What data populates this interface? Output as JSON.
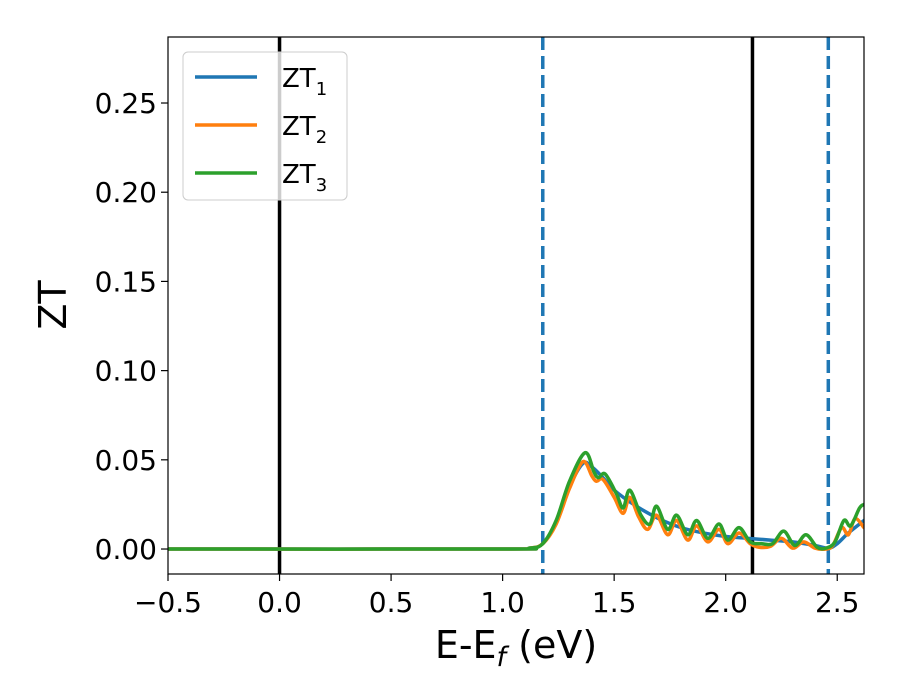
{
  "chart_data": {
    "type": "line",
    "title": "",
    "xlabel": "E-E",
    "xlabel_sub": "f",
    "xlabel_unit": " (eV)",
    "ylabel": "ZT",
    "xlim": [
      -0.5,
      2.62
    ],
    "ylim": [
      -0.014,
      0.287
    ],
    "xticks": [
      -0.5,
      0.0,
      0.5,
      1.0,
      1.5,
      2.0,
      2.5
    ],
    "xtick_labels": [
      "−0.5",
      "0.0",
      "0.5",
      "1.0",
      "1.5",
      "2.0",
      "2.5"
    ],
    "yticks": [
      0.0,
      0.05,
      0.1,
      0.15,
      0.2,
      0.25
    ],
    "ytick_labels": [
      "0.00",
      "0.05",
      "0.10",
      "0.15",
      "0.20",
      "0.25"
    ],
    "grid": false,
    "legend_position": "top-left",
    "vlines": [
      {
        "x": 0.0,
        "style": "solid",
        "color": "#000000"
      },
      {
        "x": 2.12,
        "style": "solid",
        "color": "#000000"
      },
      {
        "x": 1.18,
        "style": "dashed",
        "color": "#1f77b4"
      },
      {
        "x": 2.46,
        "style": "dashed",
        "color": "#1f77b4"
      }
    ],
    "series": [
      {
        "name": "ZT",
        "name_sub": "1",
        "color": "#1f77b4",
        "x": [
          -0.5,
          1.0,
          1.12,
          1.18,
          1.24,
          1.3,
          1.36,
          1.4,
          1.45,
          1.5,
          1.6,
          1.7,
          1.8,
          1.9,
          2.0,
          2.1,
          2.2,
          2.3,
          2.4,
          2.46,
          2.5,
          2.55,
          2.62
        ],
        "y": [
          0.0,
          0.0,
          0.0005,
          0.003,
          0.015,
          0.035,
          0.048,
          0.046,
          0.04,
          0.033,
          0.024,
          0.017,
          0.012,
          0.009,
          0.007,
          0.006,
          0.005,
          0.004,
          0.002,
          0.0005,
          0.003,
          0.009,
          0.016
        ]
      },
      {
        "name": "ZT",
        "name_sub": "2",
        "color": "#ff7f0e",
        "x": [
          -0.5,
          1.0,
          1.12,
          1.18,
          1.24,
          1.3,
          1.36,
          1.4,
          1.42,
          1.45,
          1.5,
          1.54,
          1.57,
          1.61,
          1.65,
          1.69,
          1.74,
          1.78,
          1.83,
          1.87,
          1.92,
          1.97,
          2.01,
          2.06,
          2.11,
          2.15,
          2.2,
          2.25,
          2.3,
          2.35,
          2.4,
          2.45,
          2.48,
          2.52,
          2.55,
          2.58,
          2.62
        ],
        "y": [
          0.0,
          0.0,
          0.0005,
          0.003,
          0.014,
          0.034,
          0.049,
          0.041,
          0.038,
          0.039,
          0.029,
          0.02,
          0.029,
          0.018,
          0.011,
          0.019,
          0.008,
          0.016,
          0.005,
          0.013,
          0.004,
          0.011,
          0.003,
          0.009,
          0.003,
          0.001,
          0.0015,
          0.006,
          0.0005,
          0.004,
          0.0005,
          0.0,
          0.002,
          0.012,
          0.008,
          0.017,
          0.012
        ]
      },
      {
        "name": "ZT",
        "name_sub": "3",
        "color": "#2ca02c",
        "x": [
          -0.5,
          1.0,
          1.12,
          1.18,
          1.24,
          1.3,
          1.37,
          1.41,
          1.43,
          1.46,
          1.51,
          1.54,
          1.57,
          1.62,
          1.66,
          1.69,
          1.74,
          1.78,
          1.83,
          1.87,
          1.92,
          1.97,
          2.01,
          2.06,
          2.11,
          2.16,
          2.21,
          2.26,
          2.31,
          2.36,
          2.41,
          2.45,
          2.49,
          2.53,
          2.56,
          2.6,
          2.62
        ],
        "y": [
          0.0,
          0.0,
          0.0005,
          0.003,
          0.016,
          0.038,
          0.054,
          0.043,
          0.04,
          0.042,
          0.031,
          0.023,
          0.033,
          0.019,
          0.014,
          0.024,
          0.011,
          0.019,
          0.008,
          0.016,
          0.006,
          0.014,
          0.005,
          0.012,
          0.004,
          0.003,
          0.003,
          0.01,
          0.002,
          0.008,
          0.001,
          0.0005,
          0.004,
          0.016,
          0.013,
          0.023,
          0.025
        ]
      }
    ]
  }
}
